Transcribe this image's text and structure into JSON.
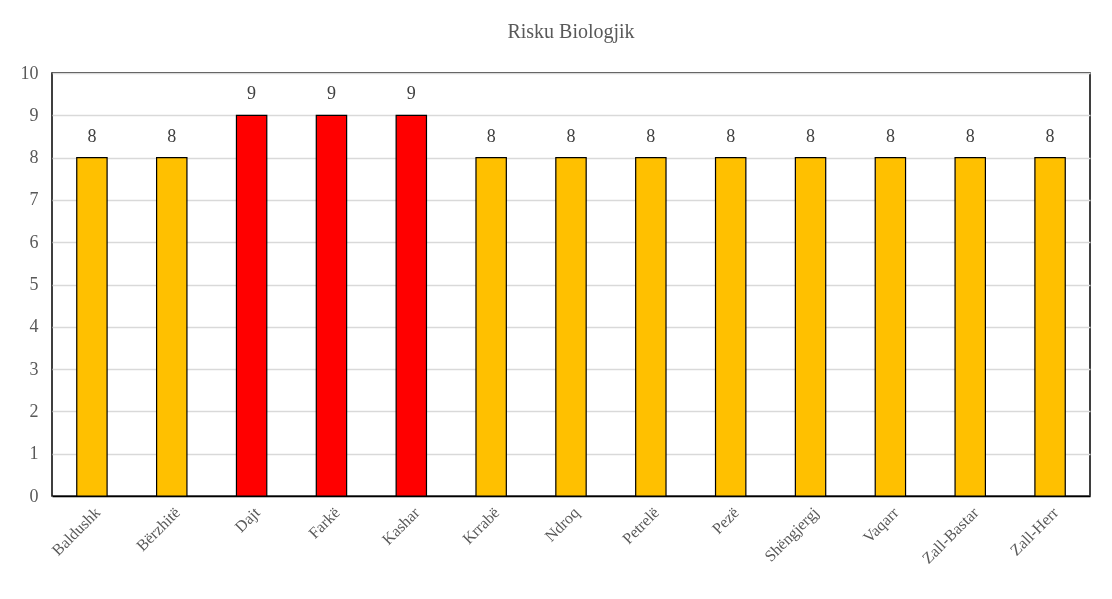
{
  "chart_data": {
    "type": "bar",
    "title": "Risku Biologjik",
    "categories": [
      "Baldushk",
      "Bërzhitë",
      "Dajt",
      "Farkë",
      "Kashar",
      "Krrabë",
      "Ndroq",
      "Petrelë",
      "Pezë",
      "Shëngjergj",
      "Vaqarr",
      "Zall-Bastar",
      "Zall-Herr"
    ],
    "values": [
      8,
      8,
      9,
      9,
      9,
      8,
      8,
      8,
      8,
      8,
      8,
      8,
      8
    ],
    "colors": [
      "#ffc000",
      "#ffc000",
      "#ff0000",
      "#ff0000",
      "#ff0000",
      "#ffc000",
      "#ffc000",
      "#ffc000",
      "#ffc000",
      "#ffc000",
      "#ffc000",
      "#ffc000",
      "#ffc000"
    ],
    "ylim": [
      0,
      10
    ],
    "yticks": [
      0,
      1,
      2,
      3,
      4,
      5,
      6,
      7,
      8,
      9,
      10
    ],
    "grid": "y",
    "data_labels": true
  }
}
